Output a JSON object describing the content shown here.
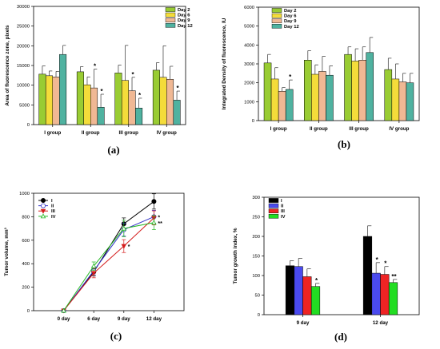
{
  "chart_data": [
    {
      "id": "a",
      "panel_label": "(a)",
      "type": "bar",
      "ylabel": "Area of fluorescence zone, pixels",
      "xlabel": "",
      "ylim": [
        0,
        30000
      ],
      "yticks": [
        0,
        5000,
        10000,
        15000,
        20000,
        25000,
        30000
      ],
      "grid": false,
      "legend": "top-right",
      "categories": [
        "I group",
        "II group",
        "III group",
        "IV group"
      ],
      "series": [
        {
          "name": "Day 2",
          "color": "#99cc33",
          "values": [
            12800,
            13400,
            13100,
            13800
          ],
          "errors": [
            2100,
            1300,
            2000,
            1900
          ]
        },
        {
          "name": "Day 6",
          "color": "#f4dc3a",
          "values": [
            12400,
            10100,
            11200,
            12000
          ],
          "errors": [
            1200,
            2000,
            8900,
            8000
          ]
        },
        {
          "name": "Day 9",
          "color": "#f0b894",
          "values": [
            12100,
            9300,
            8600,
            11500
          ],
          "errors": [
            1400,
            4800,
            3400,
            3300
          ]
        },
        {
          "name": "Day 12",
          "color": "#4fb2a0",
          "values": [
            17800,
            4400,
            4200,
            6200
          ],
          "errors": [
            2300,
            3300,
            2500,
            2300
          ]
        }
      ],
      "annotations": [
        {
          "series": 2,
          "category": 1,
          "text": "*"
        },
        {
          "series": 3,
          "category": 1,
          "text": "*"
        },
        {
          "series": 2,
          "category": 2,
          "text": "*"
        },
        {
          "series": 3,
          "category": 2,
          "text": "*"
        },
        {
          "series": 3,
          "category": 3,
          "text": "*"
        }
      ]
    },
    {
      "id": "b",
      "panel_label": "(b)",
      "type": "bar",
      "ylabel": "Integrated Density of fluorescence, IU",
      "xlabel": "",
      "ylim": [
        0,
        6000
      ],
      "yticks": [
        0,
        1000,
        2000,
        3000,
        4000,
        5000,
        6000
      ],
      "grid": false,
      "legend": "top-left",
      "categories": [
        "I group",
        "II group",
        "III group",
        "IV group"
      ],
      "series": [
        {
          "name": "Day 2",
          "color": "#99cc33",
          "values": [
            3050,
            3200,
            3500,
            2700
          ],
          "errors": [
            450,
            500,
            400,
            600
          ]
        },
        {
          "name": "Day 6",
          "color": "#f4dc3a",
          "values": [
            2200,
            2450,
            3150,
            2200
          ],
          "errors": [
            600,
            500,
            650,
            800
          ]
        },
        {
          "name": "Day 9",
          "color": "#f0b894",
          "values": [
            1550,
            2600,
            3200,
            2050
          ],
          "errors": [
            200,
            800,
            700,
            450
          ]
        },
        {
          "name": "Day 12",
          "color": "#4fb2a0",
          "values": [
            1650,
            2400,
            3600,
            2000
          ],
          "errors": [
            500,
            500,
            800,
            500
          ]
        }
      ],
      "annotations": [
        {
          "series": 3,
          "category": 0,
          "text": "*"
        }
      ]
    },
    {
      "id": "c",
      "panel_label": "(c)",
      "type": "line",
      "ylabel": "Tumor volume, mm³",
      "xlabel": "",
      "ylim": [
        0,
        1000
      ],
      "yticks": [
        0,
        200,
        400,
        600,
        800,
        1000
      ],
      "grid": false,
      "legend": "top-left",
      "categories": [
        "0 day",
        "6 day",
        "9 day",
        "12 day"
      ],
      "series": [
        {
          "name": "I",
          "color": "#000000",
          "marker": "circle",
          "filled": true,
          "values": [
            0,
            330,
            740,
            930
          ],
          "errors": [
            0,
            35,
            50,
            65
          ]
        },
        {
          "name": "II",
          "color": "#3434c8",
          "marker": "circle",
          "filled": false,
          "values": [
            0,
            340,
            690,
            800
          ],
          "errors": [
            0,
            35,
            55,
            55
          ]
        },
        {
          "name": "III",
          "color": "#d41c1c",
          "marker": "triangle-down",
          "filled": true,
          "values": [
            0,
            320,
            550,
            790
          ],
          "errors": [
            0,
            40,
            55,
            60
          ]
        },
        {
          "name": "IV",
          "color": "#22b822",
          "marker": "triangle-up",
          "filled": false,
          "values": [
            0,
            380,
            700,
            750
          ],
          "errors": [
            0,
            35,
            70,
            60
          ]
        }
      ],
      "annotations": [
        {
          "series": 2,
          "category": 2,
          "text": "*"
        },
        {
          "series": 1,
          "category": 3,
          "text": "*"
        },
        {
          "series": 3,
          "category": 3,
          "text": "**"
        }
      ]
    },
    {
      "id": "d",
      "panel_label": "(d)",
      "type": "bar",
      "ylabel": "Tumor growth index, %",
      "xlabel": "",
      "ylim": [
        0,
        300
      ],
      "yticks": [
        0,
        50,
        100,
        150,
        200,
        250,
        300
      ],
      "grid": false,
      "legend": "top-left",
      "categories": [
        "9 day",
        "12 day"
      ],
      "series": [
        {
          "name": "I",
          "color": "#000000",
          "values": [
            125,
            200
          ],
          "errors": [
            13,
            27
          ]
        },
        {
          "name": "II",
          "color": "#4a4aee",
          "values": [
            123,
            106
          ],
          "errors": [
            21,
            27
          ]
        },
        {
          "name": "III",
          "color": "#ee2424",
          "values": [
            97,
            103
          ],
          "errors": [
            20,
            20
          ]
        },
        {
          "name": "IV",
          "color": "#22dd22",
          "values": [
            72,
            82
          ],
          "errors": [
            8,
            8
          ]
        }
      ],
      "annotations": [
        {
          "series": 3,
          "category": 0,
          "text": "*"
        },
        {
          "series": 1,
          "category": 1,
          "text": "*"
        },
        {
          "series": 2,
          "category": 1,
          "text": "*"
        },
        {
          "series": 3,
          "category": 1,
          "text": "**"
        }
      ]
    }
  ]
}
